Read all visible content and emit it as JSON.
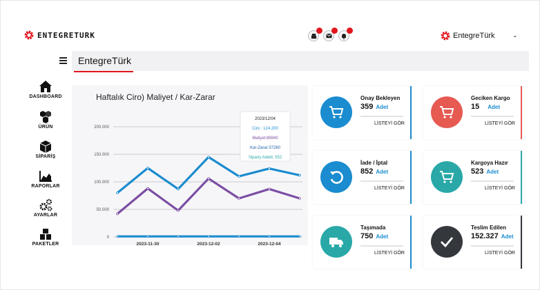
{
  "brand": {
    "logo_text": "ENTEGRETURK",
    "title": "EntegreTürk"
  },
  "user": {
    "name": "EntegreTürk"
  },
  "header_icons": [
    "store-icon",
    "mail-icon",
    "bell-icon"
  ],
  "nav": [
    {
      "label": "DASHBOARD",
      "icon": "home-icon"
    },
    {
      "label": "ÜRÜN",
      "icon": "boxes-icon"
    },
    {
      "label": "SİPARİŞ",
      "icon": "box-icon"
    },
    {
      "label": "RAPORLAR",
      "icon": "chart-icon"
    },
    {
      "label": "AYARLAR",
      "icon": "gears-icon"
    },
    {
      "label": "PAKETLER",
      "icon": "packages-icon"
    }
  ],
  "chart": {
    "title": "Haftalık Ciro) Maliyet / Kar-Zarar",
    "tooltip": {
      "date": "2023/12/04",
      "ciro": "Ciro : 124.200",
      "maliyet": "Maliyet:86940",
      "kar": "Kar-Zarar:37260",
      "siparis": "Sipariş Adedi: 552"
    }
  },
  "chart_data": {
    "type": "line",
    "x": [
      "2023-11-28",
      "2023-11-30",
      "2023-12-01",
      "2023-12-02",
      "2023-12-03",
      "2023-12-04",
      "2023-12-05"
    ],
    "xticks": [
      "2023-11-30",
      "2023-12-02",
      "2023-12-04"
    ],
    "yticks": [
      "0",
      "50.000",
      "100.000",
      "150.000",
      "200.000"
    ],
    "ytick_values": [
      0,
      50000,
      100000,
      150000,
      200000
    ],
    "ylim": [
      0,
      200000
    ],
    "series": [
      {
        "values": [
          80000,
          125000,
          87000,
          145000,
          110000,
          124200,
          112000
        ],
        "color": "#1a8ccf"
      },
      {
        "values": [
          42000,
          88000,
          48000,
          106000,
          70000,
          86940,
          70000
        ],
        "color": "#7b4ea3"
      },
      {
        "values": [
          1000,
          1000,
          1000,
          1000,
          1000,
          1000,
          1000
        ],
        "color": "#1a8ccf"
      }
    ],
    "grid": true,
    "tooltip_index": 5
  },
  "cards": [
    {
      "title": "Onay Bekleyen",
      "value": "359",
      "unit": "Adet",
      "link": "LİSTEYİ GÖR",
      "icon": "cart-icon",
      "color": "#1a8ccf",
      "bar": "#1a8ccf"
    },
    {
      "title": "Geciken Kargo",
      "value": "15",
      "unit": "Adet",
      "link": "LİSTEYİ GÖR",
      "icon": "cart-icon",
      "color": "#e65a52",
      "bar": "#e65a52"
    },
    {
      "title": "İade / İptal",
      "value": "852",
      "unit": "Adet",
      "link": "LİSTEYİ GÖR",
      "icon": "undo-icon",
      "color": "#1a8ccf",
      "bar": "#1a8ccf"
    },
    {
      "title": "Kargoya Hazır",
      "value": "523",
      "unit": "Adet",
      "link": "LİSTEYİ GÖR",
      "icon": "cart-icon",
      "color": "#2aa8a8",
      "bar": "#2aa8a8"
    },
    {
      "title": "Taşımada",
      "value": "750",
      "unit": "Adet",
      "link": "LİSTEYİ GÖR",
      "icon": "truck-icon",
      "color": "#2aa8a8",
      "bar": "#1a8ccf"
    },
    {
      "title": "Teslim Edilen",
      "value": "152.327",
      "unit": "Adet",
      "link": "LİSTEYİ GÖR",
      "icon": "check-icon",
      "color": "#34383c",
      "bar": "#34383c"
    }
  ]
}
